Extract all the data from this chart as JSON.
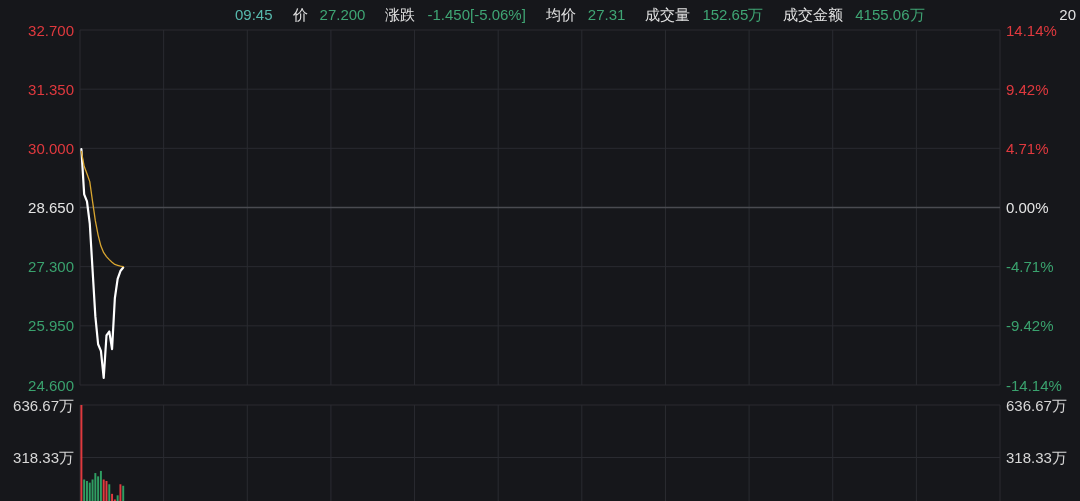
{
  "chart_data": [
    {
      "type": "line",
      "annotations": [
        "09:45",
        "价",
        "27.200",
        "涨跌",
        "-1.450[-5.06%]",
        "均价",
        "27.31",
        "成交量",
        "152.65万",
        "成交金额",
        "4155.06万",
        "20"
      ],
      "categories": [
        null,
        null,
        null,
        null,
        null,
        null,
        null,
        null,
        null,
        null,
        null,
        null,
        null,
        null,
        null,
        null,
        null,
        null,
        null,
        null,
        null,
        null,
        null,
        null,
        null,
        null,
        null,
        null,
        null,
        null,
        null,
        null,
        null,
        null,
        null,
        null,
        null,
        null,
        null,
        null,
        null,
        null,
        null,
        null,
        null,
        null,
        null,
        null,
        null,
        null,
        null,
        null,
        null,
        null,
        null,
        null,
        null,
        null,
        null,
        null,
        null,
        null,
        null,
        null,
        null,
        null,
        null,
        null,
        null,
        null,
        null,
        null,
        null,
        null,
        null,
        null,
        null,
        null,
        null,
        null,
        null,
        null,
        null,
        null,
        null,
        null,
        null,
        null,
        null,
        null,
        null,
        null,
        null,
        null,
        null,
        null,
        null,
        null,
        null,
        null,
        null,
        null,
        null,
        null,
        null,
        null,
        null,
        null,
        null,
        null,
        null,
        null,
        null,
        null,
        null,
        null,
        null,
        null,
        null,
        null,
        null,
        null,
        null,
        null,
        null,
        null,
        null,
        null,
        null,
        null,
        null,
        null,
        null,
        null,
        null,
        null,
        null,
        null,
        null,
        null,
        null,
        null,
        null,
        null,
        null,
        null,
        null,
        null,
        null,
        null,
        null,
        null,
        null,
        null,
        null,
        null,
        null,
        null,
        null,
        null,
        null,
        null,
        null,
        null,
        null,
        null,
        null,
        null,
        null,
        null,
        null,
        null,
        null,
        null,
        null,
        null,
        null,
        null,
        null,
        null,
        null,
        null,
        null,
        null,
        null,
        null,
        null,
        null,
        null,
        null,
        null,
        null,
        null,
        null,
        null,
        null,
        null,
        null,
        null,
        null,
        null,
        null,
        null,
        null,
        null,
        null,
        null,
        null,
        null,
        null,
        null,
        null,
        null,
        null,
        null,
        null,
        null,
        null,
        null,
        null,
        null,
        null,
        null,
        null,
        null,
        null,
        null,
        null,
        null,
        null,
        null,
        null,
        null,
        null,
        null,
        null,
        null,
        null,
        null,
        null,
        null,
        null,
        null,
        null,
        null,
        null,
        null,
        null,
        null,
        null,
        null,
        null,
        null,
        null,
        null,
        null,
        null,
        null,
        null,
        null,
        null,
        null,
        null,
        null,
        null,
        null,
        null,
        null,
        null,
        null,
        null,
        null,
        null,
        null,
        null,
        null,
        null,
        null,
        null,
        null,
        null,
        null,
        null,
        null,
        null,
        null,
        null,
        null,
        null,
        null,
        null,
        null,
        null,
        null,
        null,
        null,
        null,
        null,
        null,
        null,
        null,
        null,
        null,
        null,
        null,
        null,
        null,
        null,
        null,
        null,
        null,
        null,
        null,
        null,
        null,
        null,
        null,
        null,
        null,
        null,
        null,
        null,
        null,
        null,
        null,
        null,
        null,
        null,
        null,
        null
      ],
      "series": [
        {
          "color": "#ffffff",
          "values": [
            29.98,
            28.95,
            28.79,
            28.29,
            27.23,
            26.17,
            25.53,
            25.38,
            24.76,
            25.73,
            25.82,
            25.42,
            26.58,
            27.02,
            27.2,
            27.28,
            null,
            null,
            null,
            null,
            null,
            null,
            null,
            null,
            null,
            null,
            null,
            null,
            null,
            null,
            null,
            null,
            null,
            null,
            null,
            null,
            null,
            null,
            null,
            null,
            null,
            null,
            null,
            null,
            null,
            null,
            null,
            null,
            null,
            null,
            null,
            null,
            null,
            null,
            null,
            null,
            null,
            null,
            null,
            null,
            null,
            null,
            null,
            null,
            null,
            null,
            null,
            null,
            null,
            null,
            null,
            null,
            null,
            null,
            null,
            null,
            null,
            null,
            null,
            null,
            null,
            null,
            null,
            null,
            null,
            null,
            null,
            null,
            null,
            null,
            null,
            null,
            null,
            null,
            null,
            null,
            null,
            null,
            null,
            null,
            null,
            null,
            null,
            null,
            null,
            null,
            null,
            null,
            null,
            null,
            null,
            null,
            null,
            null,
            null,
            null,
            null,
            null,
            null,
            null,
            null,
            null,
            null,
            null,
            null,
            null,
            null,
            null,
            null,
            null,
            null,
            null,
            null,
            null,
            null,
            null,
            null,
            null,
            null,
            null,
            null,
            null,
            null,
            null,
            null,
            null,
            null,
            null,
            null,
            null,
            null,
            null,
            null,
            null,
            null,
            null,
            null,
            null,
            null,
            null,
            null,
            null,
            null,
            null,
            null,
            null,
            null,
            null,
            null,
            null,
            null,
            null,
            null,
            null,
            null,
            null,
            null,
            null,
            null,
            null,
            null,
            null,
            null,
            null,
            null,
            null,
            null,
            null,
            null,
            null,
            null,
            null,
            null,
            null,
            null,
            null,
            null,
            null,
            null,
            null,
            null,
            null,
            null,
            null,
            null,
            null,
            null,
            null,
            null,
            null,
            null,
            null,
            null,
            null,
            null,
            null,
            null,
            null,
            null,
            null,
            null,
            null,
            null,
            null,
            null,
            null,
            null,
            null,
            null,
            null,
            null,
            null,
            null,
            null,
            null,
            null,
            null,
            null,
            null,
            null,
            null,
            null,
            null,
            null,
            null,
            null,
            null,
            null,
            null,
            null,
            null,
            null,
            null,
            null,
            null,
            null,
            null,
            null,
            null,
            null,
            null,
            null,
            null,
            null,
            null,
            null,
            null,
            null,
            null,
            null,
            null,
            null,
            null,
            null,
            null,
            null,
            null,
            null,
            null,
            null,
            null,
            null,
            null,
            null,
            null,
            null,
            null,
            null,
            null,
            null,
            null,
            null,
            null,
            null,
            null,
            null,
            null,
            null,
            null,
            null,
            null,
            null,
            null,
            null,
            null,
            null,
            null,
            null,
            null,
            null,
            null,
            null,
            null,
            null,
            null,
            null,
            null,
            null,
            null,
            null,
            null,
            null,
            null,
            null,
            null,
            null,
            null,
            null,
            null,
            null
          ]
        },
        {
          "color": "#d8a530",
          "values": [
            29.93,
            29.59,
            29.42,
            29.24,
            28.79,
            28.35,
            28.02,
            27.77,
            27.62,
            27.53,
            27.46,
            27.4,
            27.35,
            27.33,
            27.31,
            27.3,
            null,
            null,
            null,
            null,
            null,
            null,
            null,
            null,
            null,
            null,
            null,
            null,
            null,
            null,
            null,
            null,
            null,
            null,
            null,
            null,
            null,
            null,
            null,
            null,
            null,
            null,
            null,
            null,
            null,
            null,
            null,
            null,
            null,
            null,
            null,
            null,
            null,
            null,
            null,
            null,
            null,
            null,
            null,
            null,
            null,
            null,
            null,
            null,
            null,
            null,
            null,
            null,
            null,
            null,
            null,
            null,
            null,
            null,
            null,
            null,
            null,
            null,
            null,
            null,
            null,
            null,
            null,
            null,
            null,
            null,
            null,
            null,
            null,
            null,
            null,
            null,
            null,
            null,
            null,
            null,
            null,
            null,
            null,
            null,
            null,
            null,
            null,
            null,
            null,
            null,
            null,
            null,
            null,
            null,
            null,
            null,
            null,
            null,
            null,
            null,
            null,
            null,
            null,
            null,
            null,
            null,
            null,
            null,
            null,
            null,
            null,
            null,
            null,
            null,
            null,
            null,
            null,
            null,
            null,
            null,
            null,
            null,
            null,
            null,
            null,
            null,
            null,
            null,
            null,
            null,
            null,
            null,
            null,
            null,
            null,
            null,
            null,
            null,
            null,
            null,
            null,
            null,
            null,
            null,
            null,
            null,
            null,
            null,
            null,
            null,
            null,
            null,
            null,
            null,
            null,
            null,
            null,
            null,
            null,
            null,
            null,
            null,
            null,
            null,
            null,
            null,
            null,
            null,
            null,
            null,
            null,
            null,
            null,
            null,
            null,
            null,
            null,
            null,
            null,
            null,
            null,
            null,
            null,
            null,
            null,
            null,
            null,
            null,
            null,
            null,
            null,
            null,
            null,
            null,
            null,
            null,
            null,
            null,
            null,
            null,
            null,
            null,
            null,
            null,
            null,
            null,
            null,
            null,
            null,
            null,
            null,
            null,
            null,
            null,
            null,
            null,
            null,
            null,
            null,
            null,
            null,
            null,
            null,
            null,
            null,
            null,
            null,
            null,
            null,
            null,
            null,
            null,
            null,
            null,
            null,
            null,
            null,
            null,
            null,
            null,
            null,
            null,
            null,
            null,
            null,
            null,
            null,
            null,
            null,
            null,
            null,
            null,
            null,
            null,
            null,
            null,
            null,
            null,
            null,
            null,
            null,
            null,
            null,
            null,
            null,
            null,
            null,
            null,
            null,
            null,
            null,
            null,
            null,
            null,
            null,
            null,
            null,
            null,
            null,
            null,
            null,
            null,
            null,
            null,
            null,
            null,
            null,
            null,
            null,
            null,
            null,
            null,
            null,
            null,
            null,
            null,
            null,
            null,
            null,
            null,
            null,
            null,
            null,
            null,
            null,
            null,
            null,
            null,
            null,
            null,
            null,
            null,
            null,
            null
          ]
        }
      ],
      "ylim": [
        24.6,
        32.7
      ],
      "yticks": [
        {
          "value": 24.6,
          "label": "24.600"
        },
        {
          "value": 25.95,
          "label": "25.950"
        },
        {
          "value": 27.3,
          "label": "27.300"
        },
        {
          "value": 28.65,
          "label": "28.650"
        },
        {
          "value": 30.0,
          "label": "30.000"
        },
        {
          "value": 31.35,
          "label": "31.350"
        },
        {
          "value": 32.7,
          "label": "32.700"
        }
      ],
      "y2lim": [
        -14.14,
        14.14
      ],
      "y2ticks": [
        {
          "value": -14.14,
          "label": "-14.14%"
        },
        {
          "value": -9.42,
          "label": "-9.42%"
        },
        {
          "value": -4.71,
          "label": "-4.71%"
        },
        {
          "value": 0,
          "label": "0.00%"
        },
        {
          "value": 4.71,
          "label": "4.71%"
        },
        {
          "value": 9.42,
          "label": "9.42%"
        },
        {
          "value": 14.14,
          "label": "14.14%"
        }
      ],
      "ref_lines": [
        {
          "axis": "y",
          "value": 28.65,
          "color": "#4a4b51"
        }
      ],
      "grid": true,
      "tick_labels": "y"
    },
    {
      "type": "bar",
      "categories": [
        null,
        null,
        null,
        null,
        null,
        null,
        null,
        null,
        null,
        null,
        null,
        null,
        null,
        null,
        null,
        null,
        null,
        null,
        null,
        null,
        null,
        null,
        null,
        null,
        null,
        null,
        null,
        null,
        null,
        null,
        null,
        null,
        null,
        null,
        null,
        null,
        null,
        null,
        null,
        null,
        null,
        null,
        null,
        null,
        null,
        null,
        null,
        null,
        null,
        null,
        null,
        null,
        null,
        null,
        null,
        null,
        null,
        null,
        null,
        null,
        null,
        null,
        null,
        null,
        null,
        null,
        null,
        null,
        null,
        null,
        null,
        null,
        null,
        null,
        null,
        null,
        null,
        null,
        null,
        null,
        null,
        null,
        null,
        null,
        null,
        null,
        null,
        null,
        null,
        null,
        null,
        null,
        null,
        null,
        null,
        null,
        null,
        null,
        null,
        null,
        null,
        null,
        null,
        null,
        null,
        null,
        null,
        null,
        null,
        null,
        null,
        null,
        null,
        null,
        null,
        null,
        null,
        null,
        null,
        null,
        null,
        null,
        null,
        null,
        null,
        null,
        null,
        null,
        null,
        null,
        null,
        null,
        null,
        null,
        null,
        null,
        null,
        null,
        null,
        null,
        null,
        null,
        null,
        null,
        null,
        null,
        null,
        null,
        null,
        null,
        null,
        null,
        null,
        null,
        null,
        null,
        null,
        null,
        null,
        null,
        null,
        null,
        null,
        null,
        null,
        null,
        null,
        null,
        null,
        null,
        null,
        null,
        null,
        null,
        null,
        null,
        null,
        null,
        null,
        null,
        null,
        null,
        null,
        null,
        null,
        null,
        null,
        null,
        null,
        null,
        null,
        null,
        null,
        null,
        null,
        null,
        null,
        null,
        null,
        null,
        null,
        null,
        null,
        null,
        null,
        null,
        null,
        null,
        null,
        null,
        null,
        null,
        null,
        null,
        null,
        null,
        null,
        null,
        null,
        null,
        null,
        null,
        null,
        null,
        null,
        null,
        null,
        null,
        null,
        null,
        null,
        null,
        null,
        null,
        null,
        null,
        null,
        null,
        null,
        null,
        null,
        null,
        null,
        null,
        null,
        null,
        null,
        null,
        null,
        null,
        null,
        null,
        null,
        null,
        null,
        null,
        null,
        null,
        null,
        null,
        null,
        null,
        null,
        null,
        null,
        null,
        null,
        null,
        null,
        null,
        null,
        null,
        null,
        null,
        null,
        null,
        null,
        null,
        null,
        null,
        null,
        null,
        null,
        null,
        null,
        null,
        null,
        null,
        null,
        null,
        null,
        null,
        null,
        null,
        null,
        null,
        null,
        null,
        null,
        null,
        null,
        null,
        null,
        null,
        null,
        null,
        null,
        null,
        null,
        null,
        null,
        null,
        null,
        null,
        null,
        null,
        null,
        null,
        null,
        null,
        null,
        null,
        null,
        null,
        null,
        null,
        null,
        null,
        null,
        null
      ],
      "values": [
        636.67,
        185,
        176,
        166,
        185,
        224,
        204,
        237,
        185,
        176,
        156,
        98,
        64,
        89,
        156,
        147,
        null,
        null,
        null,
        null,
        null,
        null,
        null,
        null,
        null,
        null,
        null,
        null,
        null,
        null,
        null,
        null,
        null,
        null,
        null,
        null,
        null,
        null,
        null,
        null,
        null,
        null,
        null,
        null,
        null,
        null,
        null,
        null,
        null,
        null,
        null,
        null,
        null,
        null,
        null,
        null,
        null,
        null,
        null,
        null,
        null,
        null,
        null,
        null,
        null,
        null,
        null,
        null,
        null,
        null,
        null,
        null,
        null,
        null,
        null,
        null,
        null,
        null,
        null,
        null,
        null,
        null,
        null,
        null,
        null,
        null,
        null,
        null,
        null,
        null,
        null,
        null,
        null,
        null,
        null,
        null,
        null,
        null,
        null,
        null,
        null,
        null,
        null,
        null,
        null,
        null,
        null,
        null,
        null,
        null,
        null,
        null,
        null,
        null,
        null,
        null,
        null,
        null,
        null,
        null,
        null,
        null,
        null,
        null,
        null,
        null,
        null,
        null,
        null,
        null,
        null,
        null,
        null,
        null,
        null,
        null,
        null,
        null,
        null,
        null,
        null,
        null,
        null,
        null,
        null,
        null,
        null,
        null,
        null,
        null,
        null,
        null,
        null,
        null,
        null,
        null,
        null,
        null,
        null,
        null,
        null,
        null,
        null,
        null,
        null,
        null,
        null,
        null,
        null,
        null,
        null,
        null,
        null,
        null,
        null,
        null,
        null,
        null,
        null,
        null,
        null,
        null,
        null,
        null,
        null,
        null,
        null,
        null,
        null,
        null,
        null,
        null,
        null,
        null,
        null,
        null,
        null,
        null,
        null,
        null,
        null,
        null,
        null,
        null,
        null,
        null,
        null,
        null,
        null,
        null,
        null,
        null,
        null,
        null,
        null,
        null,
        null,
        null,
        null,
        null,
        null,
        null,
        null,
        null,
        null,
        null,
        null,
        null,
        null,
        null,
        null,
        null,
        null,
        null,
        null,
        null,
        null,
        null,
        null,
        null,
        null,
        null,
        null,
        null,
        null,
        null,
        null,
        null,
        null,
        null,
        null,
        null,
        null,
        null,
        null,
        null,
        null,
        null,
        null,
        null,
        null,
        null,
        null,
        null,
        null,
        null,
        null,
        null,
        null,
        null,
        null,
        null,
        null,
        null,
        null,
        null,
        null,
        null,
        null,
        null,
        null,
        null,
        null,
        null,
        null,
        null,
        null,
        null,
        null,
        null,
        null,
        null,
        null,
        null,
        null,
        null,
        null,
        null,
        null,
        null,
        null,
        null,
        null,
        null,
        null,
        null,
        null,
        null,
        null,
        null,
        null,
        null,
        null,
        null,
        null,
        null,
        null,
        null,
        null,
        null,
        null,
        null,
        null,
        null,
        null,
        null,
        null,
        null,
        null,
        null
      ],
      "colors": [
        "#e0393e",
        "#2f9e62",
        "#2f9e62",
        "#2f9e62",
        "#2f9e62",
        "#2f9e62",
        "#2f9e62",
        "#2f9e62",
        "#e0393e",
        "#e0393e",
        "#2f9e62",
        "#e0393e",
        "#e0393e",
        "#2f9e62",
        "#e0393e",
        "#2f9e62",
        null,
        null,
        null,
        null,
        null,
        null,
        null,
        null,
        null,
        null,
        null,
        null,
        null,
        null,
        null,
        null,
        null,
        null,
        null,
        null,
        null,
        null,
        null,
        null,
        null,
        null,
        null,
        null,
        null,
        null,
        null,
        null,
        null,
        null,
        null,
        null,
        null,
        null,
        null,
        null,
        null,
        null,
        null,
        null,
        null,
        null,
        null,
        null,
        null,
        null,
        null,
        null,
        null,
        null,
        null,
        null,
        null,
        null,
        null,
        null,
        null,
        null,
        null,
        null,
        null,
        null,
        null,
        null,
        null,
        null,
        null,
        null,
        null,
        null,
        null,
        null,
        null,
        null,
        null,
        null,
        null,
        null,
        null,
        null,
        null,
        null,
        null,
        null,
        null,
        null,
        null,
        null,
        null,
        null,
        null,
        null,
        null,
        null,
        null,
        null,
        null,
        null,
        null,
        null,
        null,
        null,
        null,
        null,
        null,
        null,
        null,
        null,
        null,
        null,
        null,
        null,
        null,
        null,
        null,
        null,
        null,
        null,
        null,
        null,
        null,
        null,
        null,
        null,
        null,
        null,
        null,
        null,
        null,
        null,
        null,
        null,
        null,
        null,
        null,
        null,
        null,
        null,
        null,
        null,
        null,
        null,
        null,
        null,
        null,
        null,
        null,
        null,
        null,
        null,
        null,
        null,
        null,
        null,
        null,
        null,
        null,
        null,
        null,
        null,
        null,
        null,
        null,
        null,
        null,
        null,
        null,
        null,
        null,
        null,
        null,
        null,
        null,
        null,
        null,
        null,
        null,
        null,
        null,
        null,
        null,
        null,
        null,
        null,
        null,
        null,
        null,
        null,
        null,
        null,
        null,
        null,
        null,
        null,
        null,
        null,
        null,
        null,
        null,
        null,
        null,
        null,
        null,
        null,
        null,
        null,
        null,
        null,
        null,
        null,
        null,
        null,
        null,
        null,
        null,
        null,
        null,
        null,
        null,
        null,
        null,
        null,
        null,
        null,
        null,
        null,
        null,
        null,
        null,
        null,
        null,
        null,
        null,
        null,
        null,
        null,
        null,
        null,
        null,
        null,
        null,
        null,
        null,
        null,
        null,
        null,
        null,
        null,
        null,
        null,
        null,
        null,
        null,
        null,
        null,
        null,
        null,
        null,
        null,
        null,
        null,
        null,
        null,
        null,
        null,
        null,
        null,
        null,
        null,
        null,
        null,
        null,
        null,
        null,
        null,
        null,
        null,
        null,
        null,
        null,
        null,
        null,
        null,
        null,
        null,
        null,
        null,
        null,
        null,
        null,
        null,
        null,
        null,
        null,
        null,
        null,
        null,
        null,
        null,
        null,
        null,
        null,
        null,
        null,
        null,
        null,
        null,
        null,
        null,
        null
      ],
      "ylim": [
        0,
        636.67
      ],
      "yticks": [
        {
          "value": 318.33,
          "label": "318.33万"
        },
        {
          "value": 636.67,
          "label": "636.67万"
        }
      ],
      "y2lim": [
        0,
        636.67
      ],
      "y2ticks": [
        {
          "value": 318.33,
          "label": "318.33万"
        },
        {
          "value": 636.67,
          "label": "636.67万"
        }
      ],
      "grid": true,
      "tick_labels": "y"
    }
  ]
}
